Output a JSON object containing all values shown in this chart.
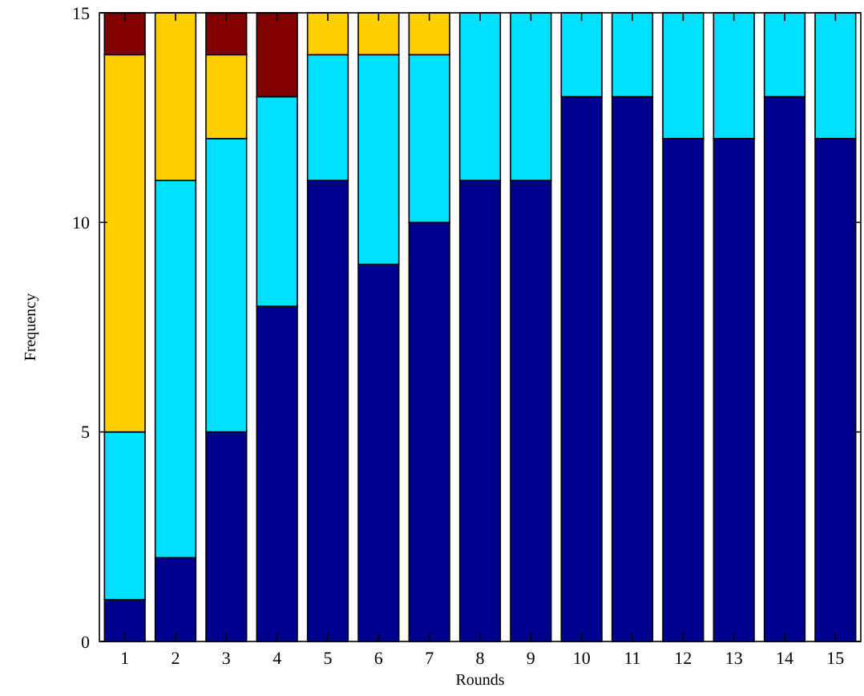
{
  "chart_data": {
    "type": "bar",
    "stacked": true,
    "xlabel": "Rounds",
    "ylabel": "Frequency",
    "x": [
      1,
      2,
      3,
      4,
      5,
      6,
      7,
      8,
      9,
      10,
      11,
      12,
      13,
      14,
      15
    ],
    "series": [
      {
        "color": "#00008f",
        "values": [
          1,
          2,
          5,
          8,
          11,
          9,
          10,
          11,
          11,
          13,
          13,
          12,
          12,
          13,
          12
        ]
      },
      {
        "color": "#00dfff",
        "values": [
          4,
          9,
          7,
          5,
          3,
          5,
          4,
          4,
          4,
          2,
          2,
          3,
          3,
          2,
          3
        ]
      },
      {
        "color": "#ffcf00",
        "values": [
          9,
          4,
          2,
          0,
          1,
          1,
          1,
          0,
          0,
          0,
          0,
          0,
          0,
          0,
          0
        ]
      },
      {
        "color": "#800000",
        "values": [
          1,
          0,
          1,
          2,
          0,
          0,
          0,
          0,
          0,
          0,
          0,
          0,
          0,
          0,
          0
        ]
      }
    ],
    "xlim": [
      0.5,
      15.5
    ],
    "xticks": [
      1,
      2,
      3,
      4,
      5,
      6,
      7,
      8,
      9,
      10,
      11,
      12,
      13,
      14,
      15
    ],
    "ylim": [
      0,
      15
    ],
    "yticks": [
      0,
      5,
      10,
      15
    ],
    "grid": false
  }
}
